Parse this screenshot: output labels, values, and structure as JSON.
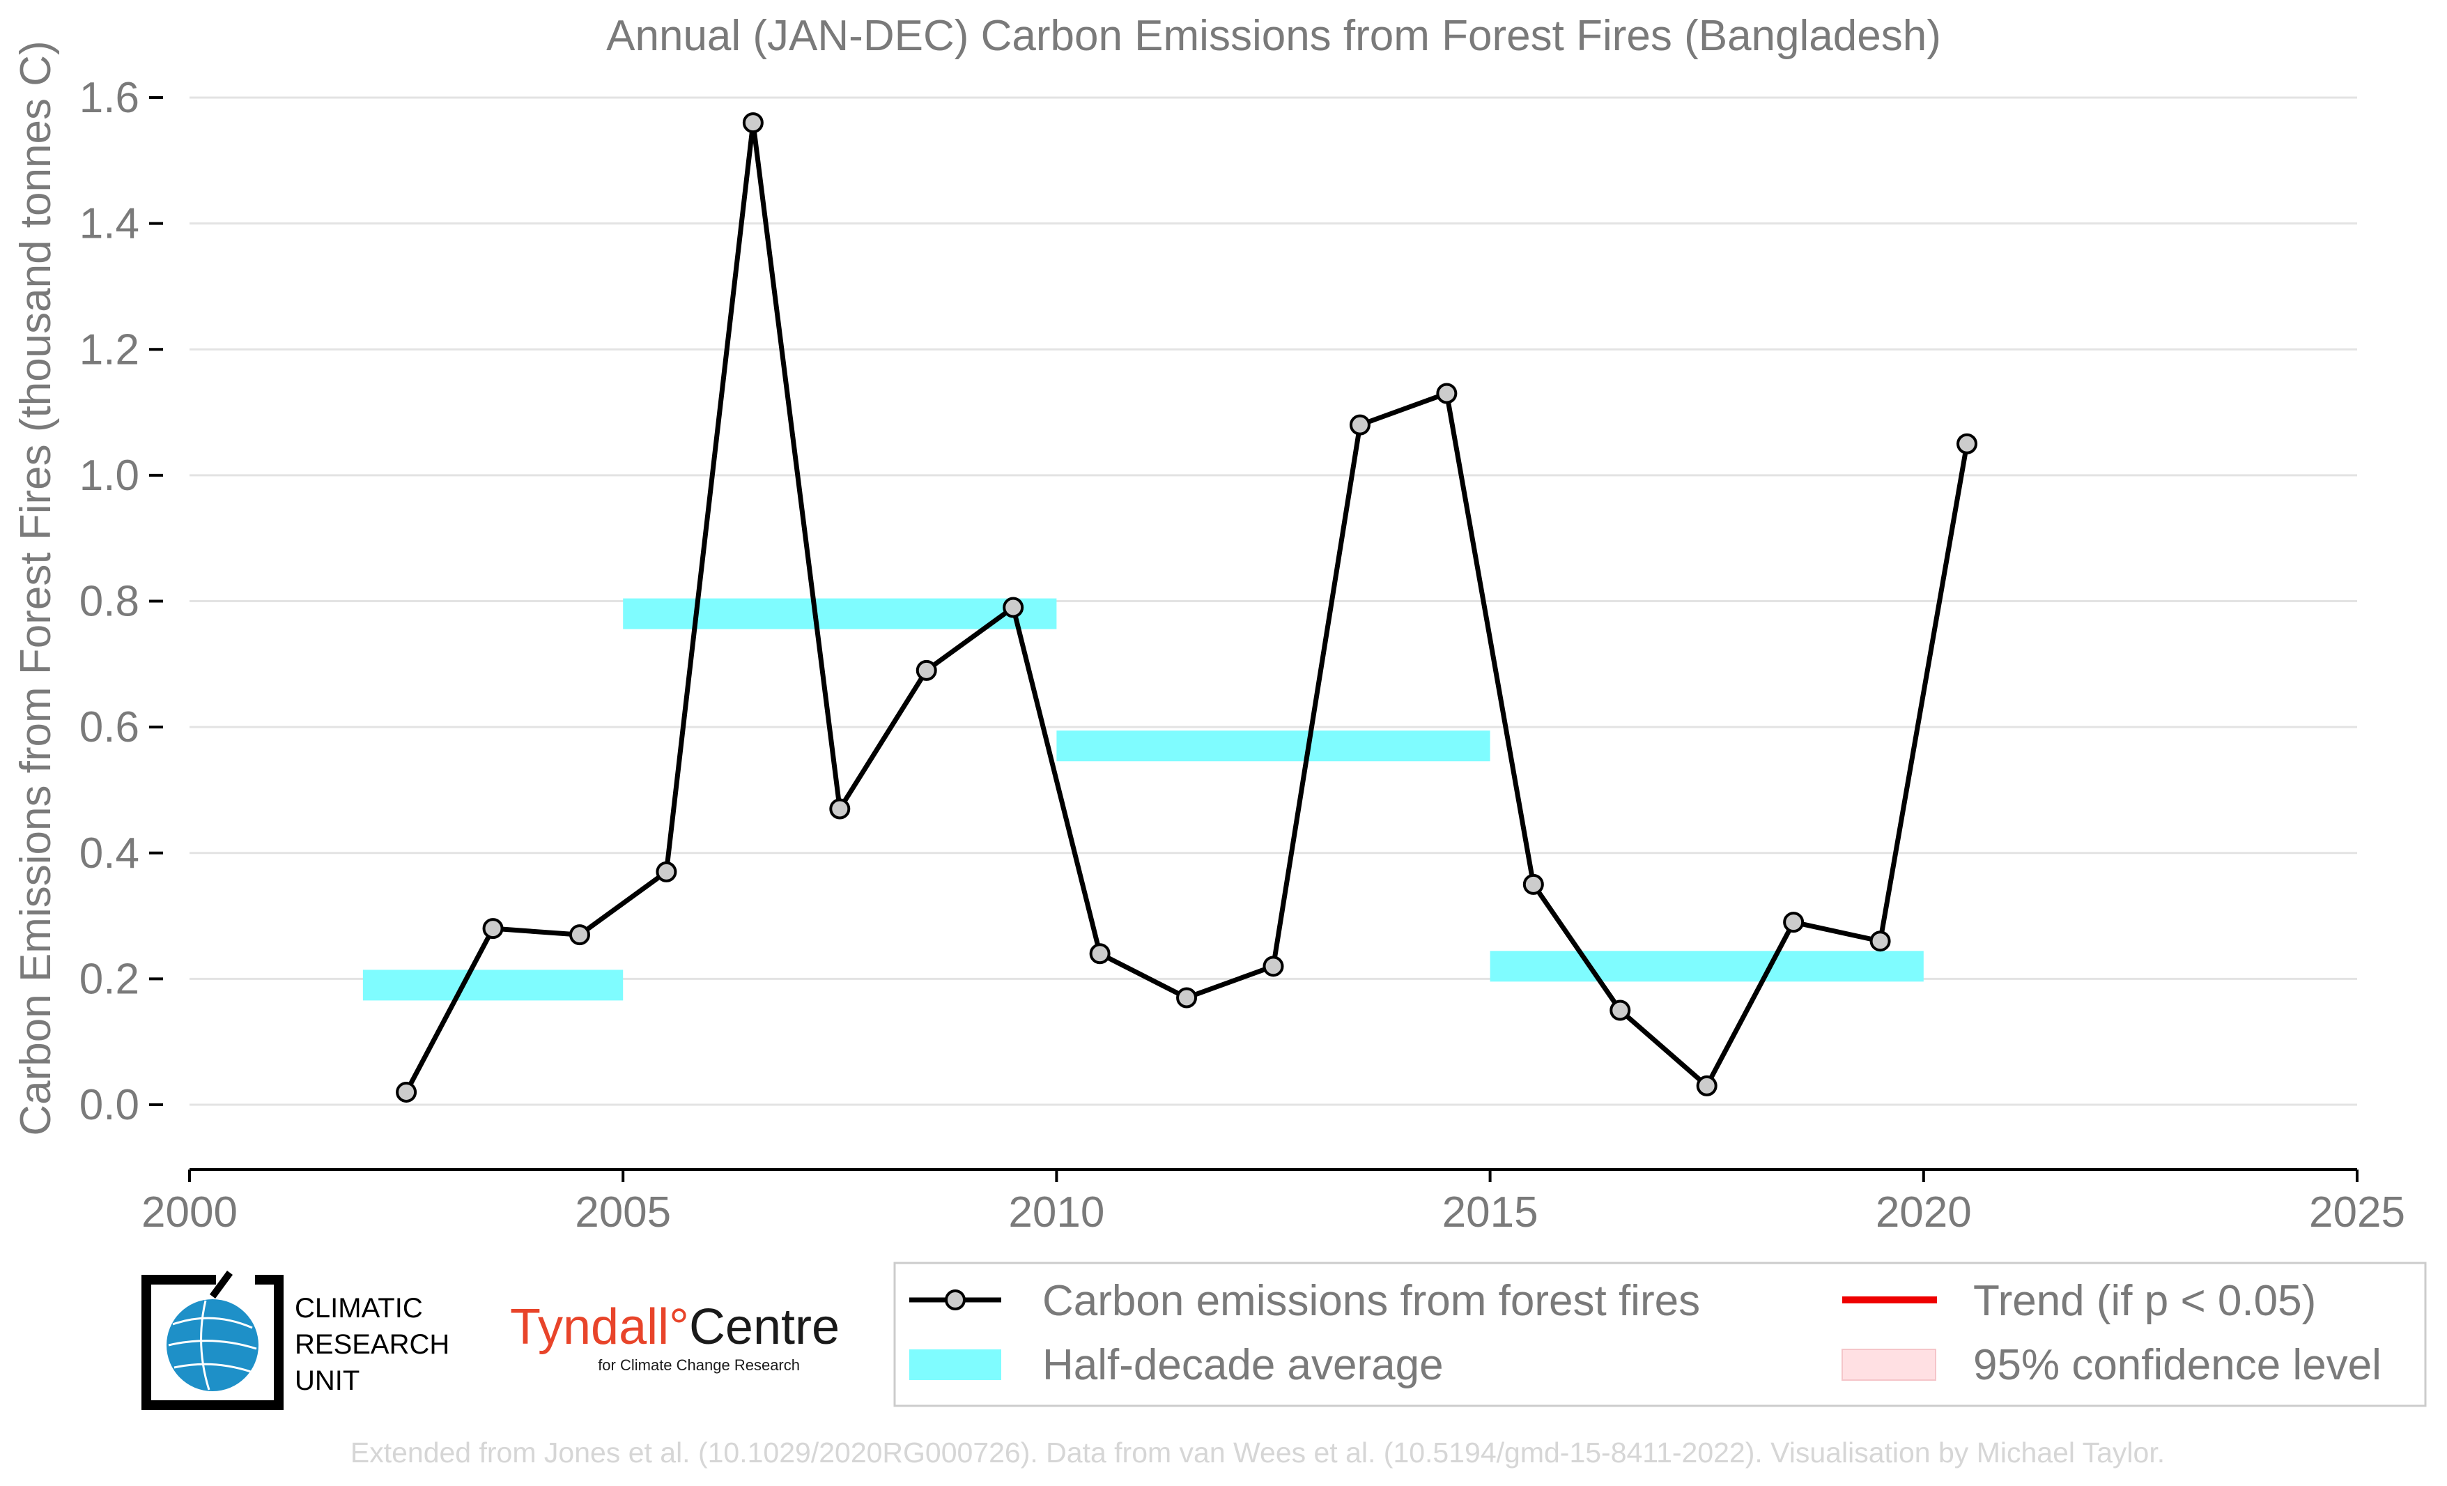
{
  "chart_data": {
    "type": "line",
    "title": "Annual (JAN-DEC) Carbon Emissions from Forest Fires (Bangladesh)",
    "xlabel": "",
    "ylabel": "Carbon Emissions from Forest Fires (thousand tonnes C)",
    "xlim": [
      2000,
      2025
    ],
    "ylim": [
      -0.1,
      1.6
    ],
    "x_ticks": [
      "2000",
      "2005",
      "2010",
      "2015",
      "2020",
      "2025"
    ],
    "y_ticks": [
      "0.0",
      "0.2",
      "0.4",
      "0.6",
      "0.8",
      "1.0",
      "1.2",
      "1.4",
      "1.6"
    ],
    "grid": "horizontal",
    "legend_position": "bottom-right",
    "series": [
      {
        "name": "Carbon emissions from forest fires",
        "color": "#000000",
        "marker_color": "#cccccc",
        "x": [
          2002.5,
          2003.5,
          2004.5,
          2005.5,
          2006.5,
          2007.5,
          2008.5,
          2009.5,
          2010.5,
          2011.5,
          2012.5,
          2013.5,
          2014.5,
          2015.5,
          2016.5,
          2017.5,
          2018.5,
          2019.5,
          2020.5
        ],
        "values": [
          0.02,
          0.28,
          0.27,
          0.37,
          1.56,
          0.47,
          0.69,
          0.79,
          0.24,
          0.17,
          0.22,
          1.08,
          1.13,
          0.35,
          0.15,
          0.03,
          0.29,
          0.26,
          1.05
        ]
      },
      {
        "name": "Half-decade average",
        "color": "#7ffcff",
        "segments": [
          {
            "x_start": 2002,
            "x_end": 2005,
            "value": 0.19
          },
          {
            "x_start": 2005,
            "x_end": 2010,
            "value": 0.78
          },
          {
            "x_start": 2010,
            "x_end": 2015,
            "value": 0.57
          },
          {
            "x_start": 2015,
            "x_end": 2020,
            "value": 0.22
          }
        ]
      }
    ],
    "legend": [
      {
        "label": "Carbon emissions from forest fires",
        "color": "#000000",
        "kind": "line-marker"
      },
      {
        "label": "Half-decade average",
        "color": "#7ffcff",
        "kind": "band"
      },
      {
        "label": "Trend (if p < 0.05)",
        "color": "#ee0000",
        "kind": "line"
      },
      {
        "label": "95% confidence level",
        "color": "#ffe0e3",
        "kind": "patch"
      }
    ]
  },
  "logos": {
    "cru_lines": [
      "CLIMATIC",
      "RESEARCH",
      "UNIT"
    ],
    "tyndall_red": "Tyndall",
    "tyndall_deg": "°",
    "tyndall_black": "Centre",
    "tyndall_sub": "for Climate Change Research"
  },
  "credit": "Extended from Jones et al. (10.1029/2020RG000726). Data from van Wees et al. (10.5194/gmd-15-8411-2022). Visualisation by Michael Taylor."
}
